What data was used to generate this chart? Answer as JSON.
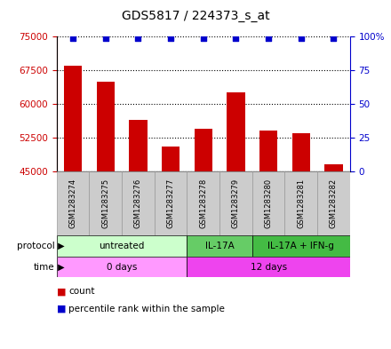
{
  "title": "GDS5817 / 224373_s_at",
  "samples": [
    "GSM1283274",
    "GSM1283275",
    "GSM1283276",
    "GSM1283277",
    "GSM1283278",
    "GSM1283279",
    "GSM1283280",
    "GSM1283281",
    "GSM1283282"
  ],
  "counts": [
    68500,
    65000,
    56500,
    50500,
    54500,
    62500,
    54000,
    53500,
    46500
  ],
  "percentiles": [
    99,
    99,
    99,
    99,
    99,
    99,
    99,
    99,
    99
  ],
  "bar_color": "#cc0000",
  "dot_color": "#0000cc",
  "ylim_left": [
    45000,
    75000
  ],
  "yticks_left": [
    45000,
    52500,
    60000,
    67500,
    75000
  ],
  "ylim_right": [
    0,
    100
  ],
  "yticks_right": [
    0,
    25,
    50,
    75,
    100
  ],
  "yticklabels_right": [
    "0",
    "25",
    "50",
    "75",
    "100%"
  ],
  "protocol_groups": [
    {
      "label": "untreated",
      "start": 0,
      "end": 4,
      "color": "#ccffcc"
    },
    {
      "label": "IL-17A",
      "start": 4,
      "end": 6,
      "color": "#66cc66"
    },
    {
      "label": "IL-17A + IFN-g",
      "start": 6,
      "end": 9,
      "color": "#44bb44"
    }
  ],
  "time_groups": [
    {
      "label": "0 days",
      "start": 0,
      "end": 4,
      "color": "#ff99ff"
    },
    {
      "label": "12 days",
      "start": 4,
      "end": 9,
      "color": "#ee44ee"
    }
  ],
  "protocol_label": "protocol",
  "time_label": "time",
  "legend_count_label": "count",
  "legend_percentile_label": "percentile rank within the sample",
  "left_axis_color": "#cc0000",
  "right_axis_color": "#0000cc",
  "grid_color": "#000000",
  "sample_box_color": "#cccccc",
  "sample_box_edge_color": "#888888",
  "bg_color": "#ffffff"
}
